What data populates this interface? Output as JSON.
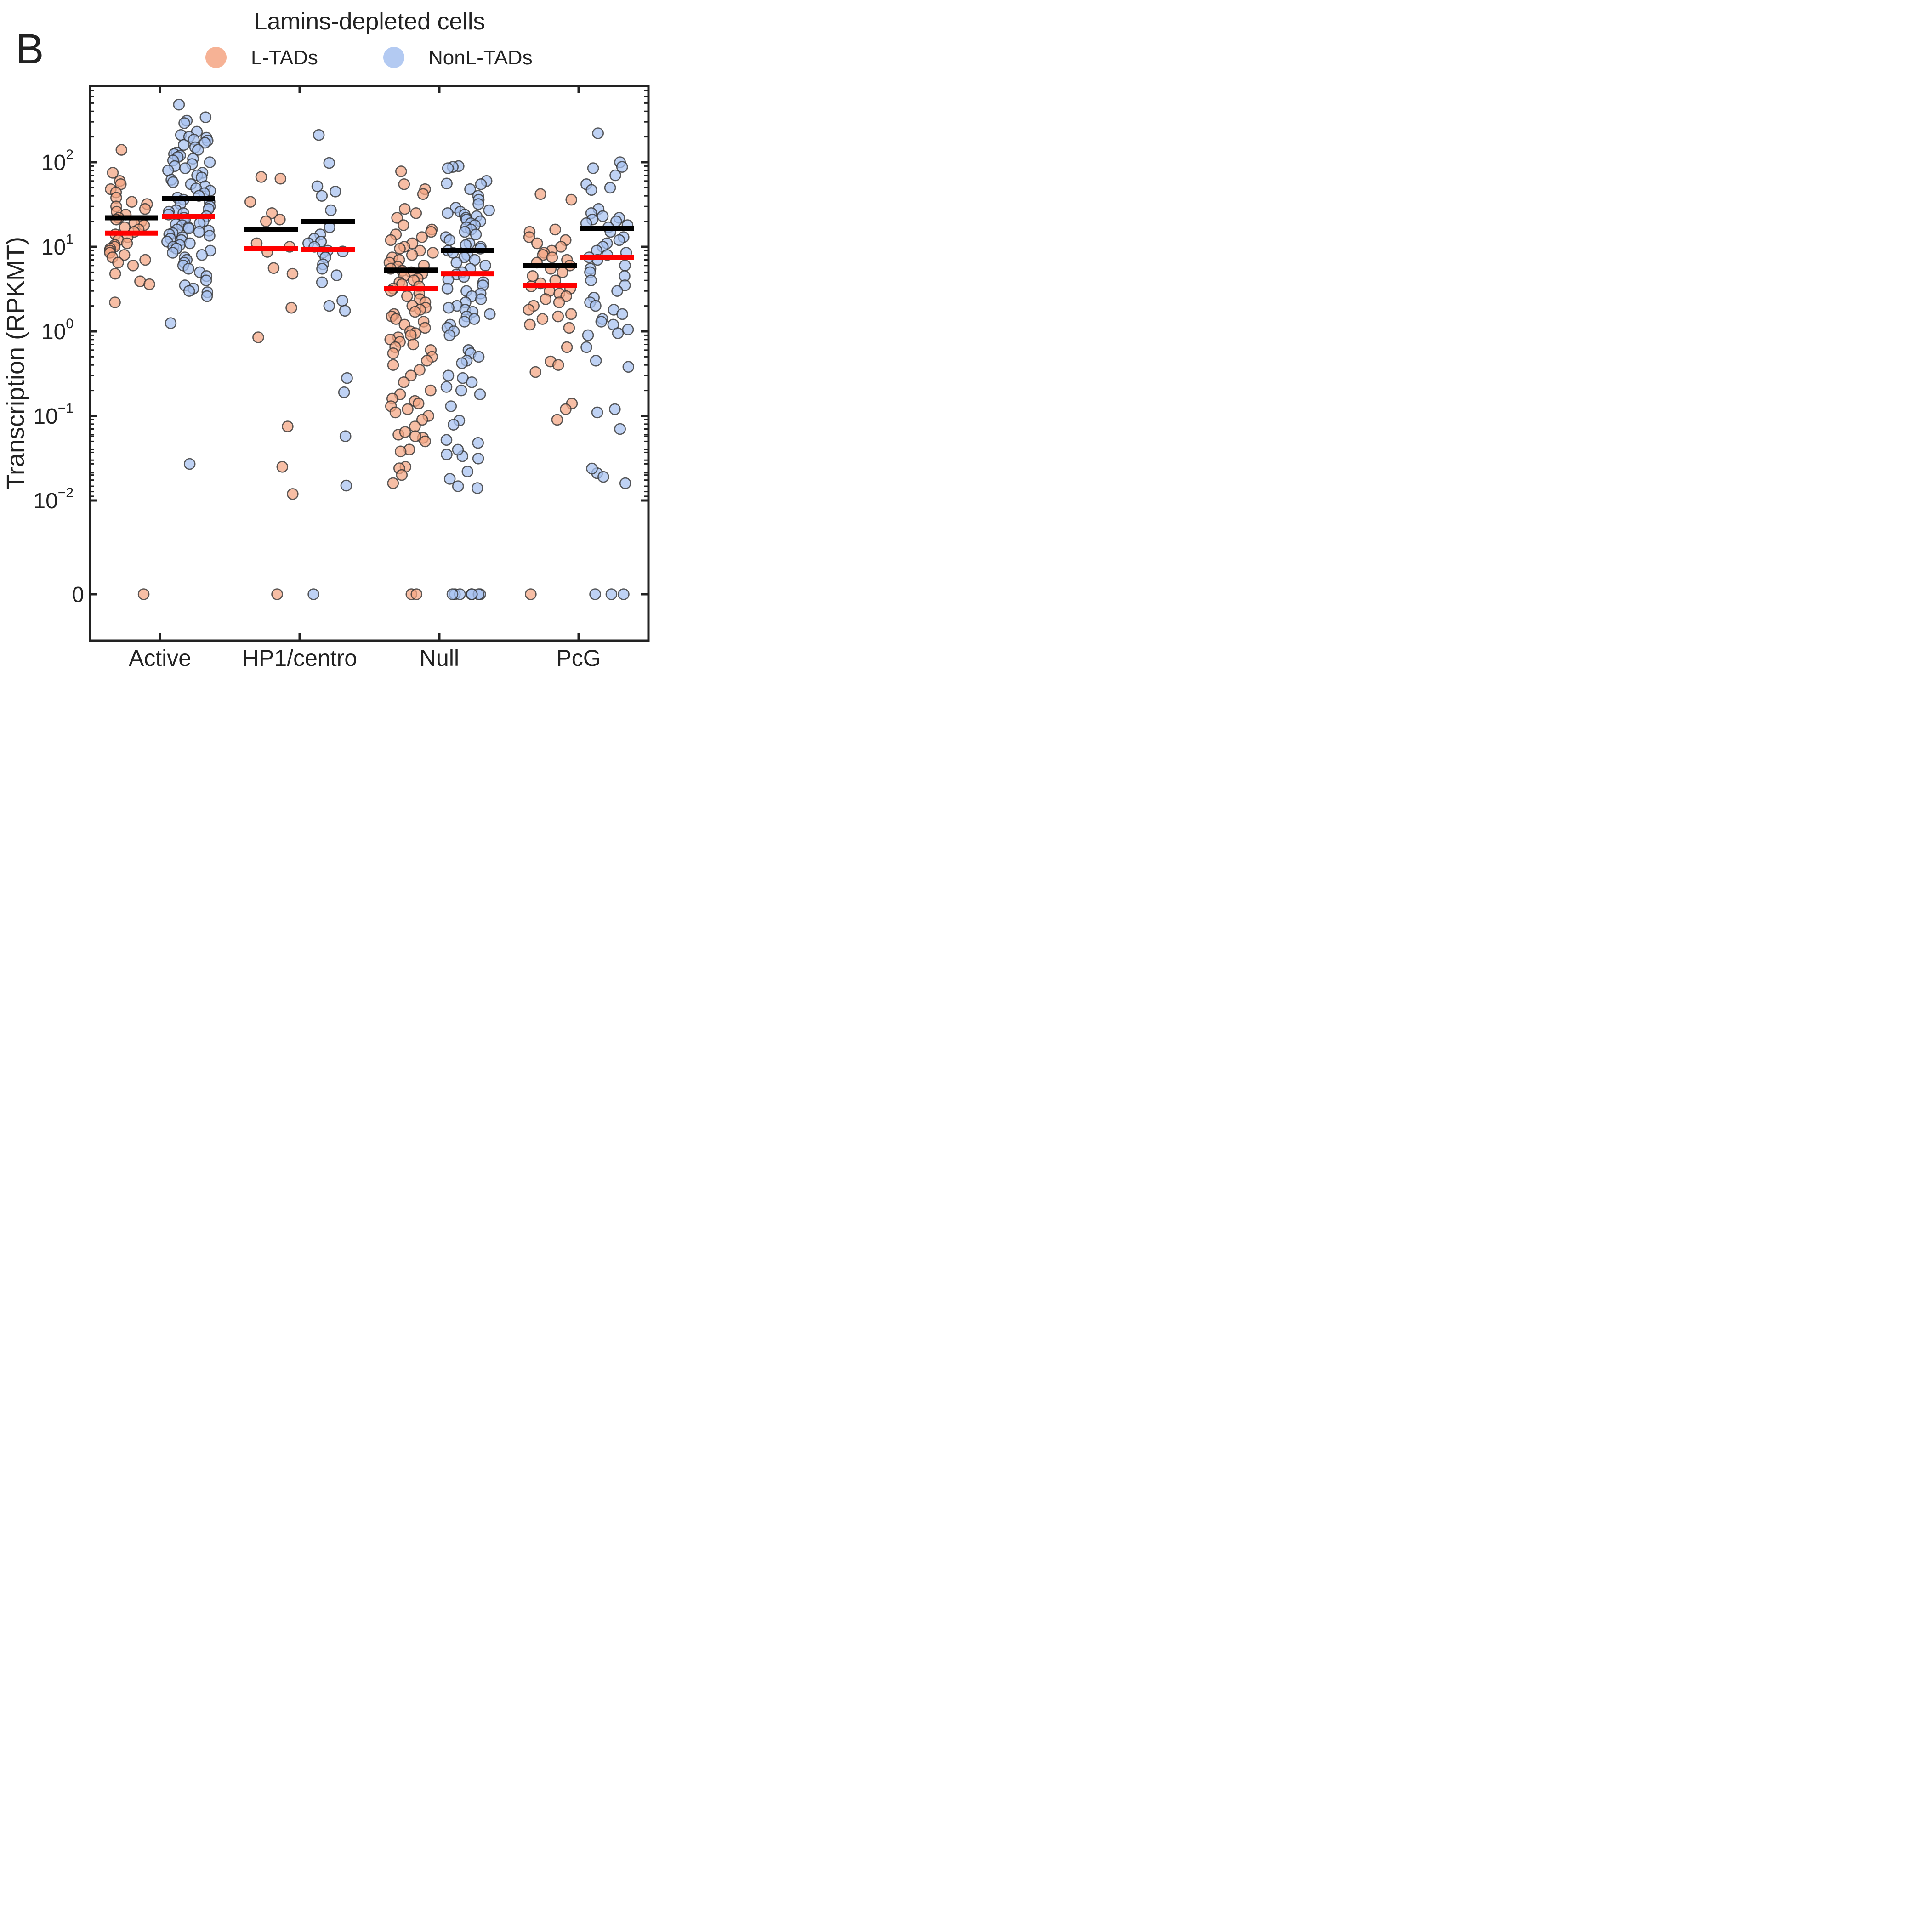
{
  "panel_label": "B",
  "chart_data": {
    "type": "scatter",
    "title": "Lamins-depleted cells",
    "xlabel": "",
    "ylabel": "Transcription (RPKMT)",
    "y_scale": "symlog",
    "y_ticks": [
      {
        "value": 0,
        "base": "0",
        "exp": ""
      },
      {
        "value": 0.01,
        "base": "10",
        "exp": "−2"
      },
      {
        "value": 0.1,
        "base": "10",
        "exp": "−1"
      },
      {
        "value": 1,
        "base": "10",
        "exp": "0"
      },
      {
        "value": 10,
        "base": "10",
        "exp": "1"
      },
      {
        "value": 100,
        "base": "10",
        "exp": "2"
      }
    ],
    "categories": [
      "Active",
      "HP1/centro",
      "Null",
      "PcG"
    ],
    "legend_position": "top-center",
    "series": [
      {
        "name": "L-TADs",
        "color": "#f4a582",
        "mean_color": "#000000",
        "median_color": "#ff0000",
        "groups": [
          {
            "category": "Active",
            "mean": 22,
            "median": 14.5,
            "values": [
              140,
              75,
              60,
              55,
              48,
              44,
              38,
              34,
              32,
              30,
              28,
              26,
              24,
              22,
              21,
              20,
              19,
              18,
              17,
              16,
              15,
              14,
              13,
              12,
              11,
              10.5,
              10,
              9.5,
              9,
              8.5,
              8,
              7.5,
              7,
              6.5,
              6,
              4.8,
              3.9,
              3.6,
              2.2,
              0
            ]
          },
          {
            "category": "HP1/centro",
            "mean": 16,
            "median": 9.5,
            "values": [
              67,
              64,
              34,
              25,
              21,
              20,
              11,
              10,
              8.7,
              5.6,
              4.8,
              1.9,
              0.85,
              0.075,
              0.025,
              0.0085,
              0
            ]
          },
          {
            "category": "Null",
            "mean": 5.3,
            "median": 3.2,
            "values": [
              78,
              55,
              48,
              42,
              28,
              25,
              22,
              18,
              16,
              15,
              14,
              13,
              12,
              11,
              10,
              9.5,
              9,
              8.5,
              8,
              7.5,
              7,
              6.5,
              6,
              5.8,
              5.5,
              5.2,
              5,
              4.8,
              4.5,
              4.2,
              4,
              3.8,
              3.6,
              3.4,
              3.2,
              3,
              2.8,
              2.6,
              2.4,
              2.2,
              2,
              1.9,
              1.8,
              1.7,
              1.6,
              1.5,
              1.4,
              1.3,
              1.2,
              1.1,
              1,
              0.95,
              0.9,
              0.85,
              0.8,
              0.75,
              0.7,
              0.65,
              0.6,
              0.55,
              0.5,
              0.45,
              0.4,
              0.35,
              0.3,
              0.25,
              0.2,
              0.18,
              0.16,
              0.15,
              0.14,
              0.13,
              0.12,
              0.11,
              0.1,
              0.09,
              0.075,
              0.06,
              0.055,
              0.05,
              0.04,
              0.038,
              0.025,
              0.024,
              0.02,
              0.016,
              0.002,
              0.0018,
              0,
              0
            ]
          },
          {
            "category": "PcG",
            "mean": 6,
            "median": 3.5,
            "values": [
              42,
              36,
              16,
              15,
              13,
              12,
              11,
              10,
              9,
              8.5,
              8,
              7.5,
              7,
              6.5,
              6,
              5.5,
              5,
              4.5,
              4,
              3.7,
              3.4,
              3.2,
              3,
              2.8,
              2.6,
              2.4,
              2.2,
              2,
              1.8,
              1.6,
              1.5,
              1.4,
              1.2,
              1.1,
              0.65,
              0.44,
              0.4,
              0.33,
              0.14,
              0.12,
              0.09,
              0
            ]
          }
        ]
      },
      {
        "name": "NonL-TADs",
        "color": "#a6c1f0",
        "mean_color": "#000000",
        "median_color": "#ff0000",
        "groups": [
          {
            "category": "Active",
            "mean": 37,
            "median": 23,
            "values": [
              480,
              340,
              310,
              290,
              230,
              210,
              200,
              195,
              185,
              180,
              170,
              160,
              150,
              140,
              130,
              125,
              120,
              115,
              110,
              105,
              100,
              95,
              90,
              85,
              80,
              75,
              70,
              66,
              62,
              58,
              55,
              52,
              49,
              46,
              43,
              40,
              38,
              36,
              34,
              32,
              30,
              28,
              27,
              26,
              25,
              24,
              23,
              22,
              21,
              20,
              19,
              18.5,
              18,
              17,
              16.5,
              16,
              15.5,
              15,
              14.5,
              14,
              13.5,
              13,
              12.5,
              12,
              11.5,
              11,
              10.5,
              10,
              9.5,
              9,
              8.5,
              8,
              7.5,
              7,
              6.5,
              6,
              5.5,
              5,
              4.5,
              4,
              3.5,
              3.2,
              3,
              2.9,
              2.6,
              1.25,
              0.027
            ]
          },
          {
            "category": "HP1/centro",
            "mean": 20,
            "median": 9.3,
            "values": [
              210,
              98,
              52,
              45,
              40,
              27,
              17,
              14,
              12.5,
              11.5,
              11,
              10,
              9,
              8.5,
              8.8,
              7.5,
              6.2,
              5.5,
              4.6,
              3.8,
              2.3,
              2,
              1.75,
              0.28,
              0.19,
              0.015,
              0.002,
              0
            ]
          },
          {
            "category": "Null",
            "mean": 9,
            "median": 4.8,
            "values": [
              90,
              88,
              85,
              60,
              56,
              55,
              48,
              40,
              36,
              32,
              29,
              27,
              26,
              25,
              24,
              23,
              22,
              21,
              20,
              19,
              18,
              17,
              16,
              15,
              14,
              13,
              12,
              11,
              10.5,
              10,
              9.5,
              9,
              8.5,
              8,
              7.5,
              7,
              6.5,
              6,
              5.5,
              5,
              4.7,
              4.4,
              4.1,
              3.8,
              3.5,
              3.2,
              3,
              2.8,
              2.6,
              2.4,
              2.2,
              2,
              1.9,
              1.8,
              1.7,
              1.6,
              1.5,
              1.4,
              1.3,
              1.2,
              1.1,
              1,
              0.9,
              0.6,
              0.55,
              0.5,
              0.45,
              0.42,
              0.3,
              0.28,
              0.25,
              0.22,
              0.2,
              0.18,
              0.13,
              0.088,
              0.052,
              0.048,
              0.035,
              0.022,
              0.018,
              0.014,
              0.007,
              0.0035,
              0.0033,
              0.0028,
              0.0015,
              0,
              0,
              0,
              0,
              0,
              0,
              0
            ]
          },
          {
            "category": "PcG",
            "mean": 16.5,
            "median": 7.5,
            "values": [
              220,
              100,
              88,
              85,
              70,
              55,
              50,
              47,
              28,
              25,
              23,
              22,
              21,
              20,
              19,
              18,
              17,
              15,
              13,
              12,
              11,
              10,
              9,
              8.5,
              8,
              7.5,
              7,
              6,
              5.5,
              5,
              4.5,
              4,
              3.5,
              3,
              2.5,
              2.2,
              2,
              1.8,
              1.6,
              1.4,
              1.3,
              1.2,
              1.05,
              0.95,
              0.9,
              0.65,
              0.45,
              0.38,
              0.12,
              0.11,
              0.07,
              0.021,
              0.019,
              0.0065,
              0.0045,
              0,
              0,
              0
            ]
          }
        ]
      }
    ]
  }
}
